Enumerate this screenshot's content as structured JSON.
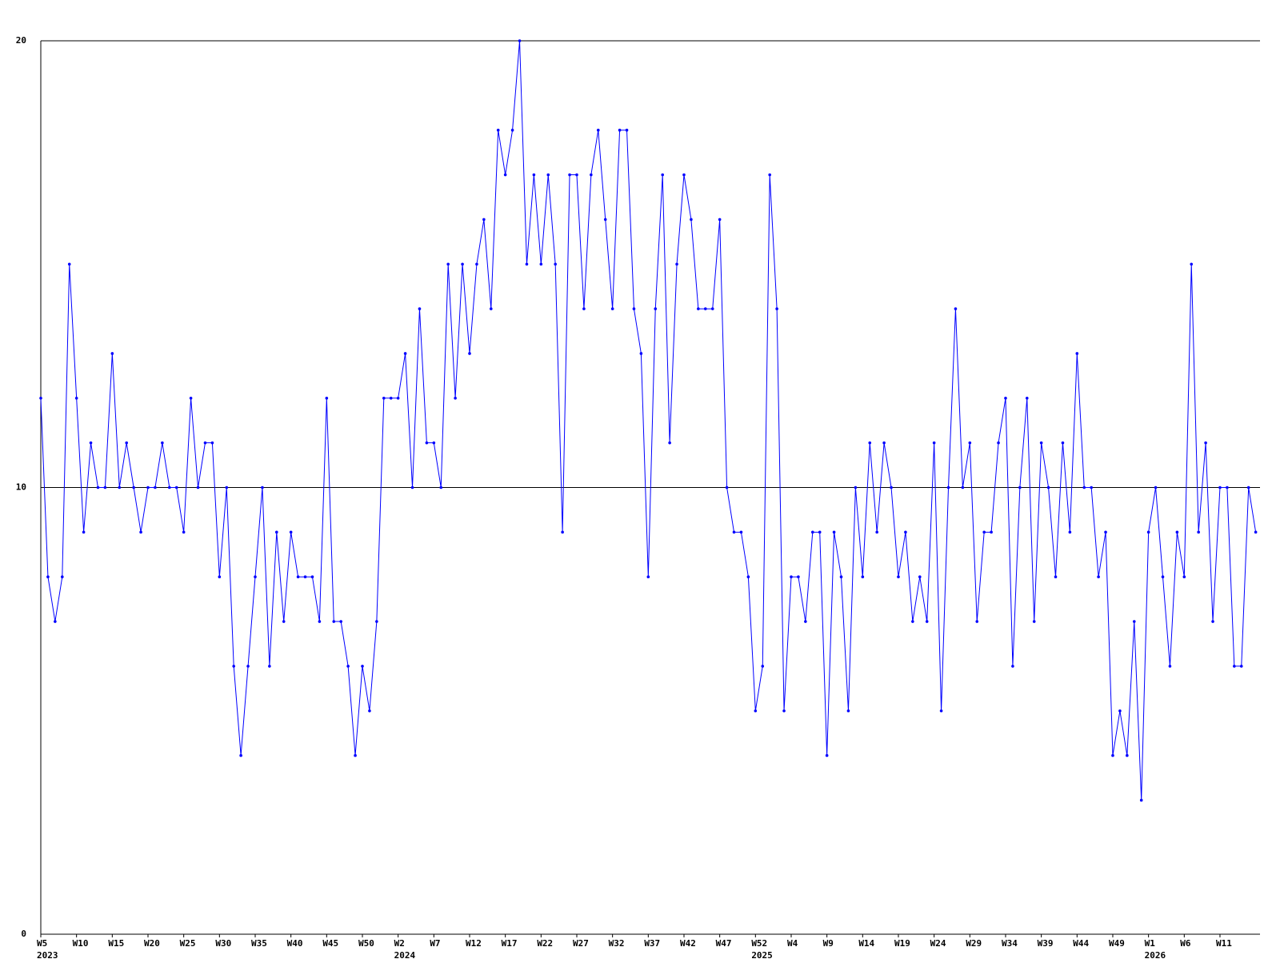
{
  "chart_data": {
    "type": "line",
    "values": [
      12,
      8,
      7,
      8,
      15,
      12,
      9,
      11,
      10,
      10,
      13,
      10,
      11,
      10,
      9,
      10,
      10,
      11,
      10,
      10,
      9,
      12,
      10,
      11,
      11,
      8,
      10,
      6,
      4,
      6,
      8,
      10,
      6,
      9,
      7,
      9,
      8,
      8,
      8,
      7,
      12,
      7,
      7,
      6,
      4,
      6,
      5,
      7,
      12,
      12,
      12,
      13,
      10,
      14,
      11,
      11,
      10,
      15,
      12,
      15,
      13,
      15,
      16,
      14,
      18,
      17,
      18,
      20,
      15,
      17,
      15,
      17,
      15,
      9,
      17,
      17,
      14,
      17,
      18,
      16,
      14,
      18,
      18,
      14,
      13,
      8,
      14,
      17,
      11,
      15,
      17,
      16,
      14,
      14,
      14,
      16,
      10,
      9,
      9,
      8,
      5,
      6,
      17,
      14,
      5,
      8,
      8,
      7,
      9,
      9,
      4,
      9,
      8,
      5,
      10,
      8,
      11,
      9,
      11,
      10,
      8,
      9,
      7,
      8,
      7,
      11,
      5,
      10,
      14,
      10,
      11,
      7,
      9,
      9,
      11,
      12,
      6,
      10,
      12,
      7,
      11,
      10,
      8,
      11,
      9,
      13,
      10,
      10,
      8,
      9,
      4,
      5,
      4,
      7,
      3,
      9,
      10,
      8,
      6,
      9,
      8,
      15,
      9,
      11,
      7,
      10,
      10,
      6,
      6,
      10,
      9
    ],
    "color": "#0000ff",
    "xlim": [
      0,
      170.6
    ],
    "xticks": [
      {
        "value": 0,
        "label": "W5"
      },
      {
        "value": 5,
        "label": "W10"
      },
      {
        "value": 10,
        "label": "W15"
      },
      {
        "value": 15,
        "label": "W20"
      },
      {
        "value": 20,
        "label": "W25"
      },
      {
        "value": 25,
        "label": "W30"
      },
      {
        "value": 30,
        "label": "W35"
      },
      {
        "value": 35,
        "label": "W40"
      },
      {
        "value": 40,
        "label": "W45"
      },
      {
        "value": 45,
        "label": "W50"
      },
      {
        "value": 50,
        "label": "W2"
      },
      {
        "value": 55,
        "label": "W7"
      },
      {
        "value": 60,
        "label": "W12"
      },
      {
        "value": 65,
        "label": "W17"
      },
      {
        "value": 70,
        "label": "W22"
      },
      {
        "value": 75,
        "label": "W27"
      },
      {
        "value": 80,
        "label": "W32"
      },
      {
        "value": 85,
        "label": "W37"
      },
      {
        "value": 90,
        "label": "W42"
      },
      {
        "value": 95,
        "label": "W47"
      },
      {
        "value": 100,
        "label": "W52"
      },
      {
        "value": 105,
        "label": "W4"
      },
      {
        "value": 110,
        "label": "W9"
      },
      {
        "value": 115,
        "label": "W14"
      },
      {
        "value": 120,
        "label": "W19"
      },
      {
        "value": 125,
        "label": "W24"
      },
      {
        "value": 130,
        "label": "W29"
      },
      {
        "value": 135,
        "label": "W34"
      },
      {
        "value": 140,
        "label": "W39"
      },
      {
        "value": 145,
        "label": "W44"
      },
      {
        "value": 150,
        "label": "W49"
      },
      {
        "value": 155,
        "label": "W1"
      },
      {
        "value": 160,
        "label": "W6"
      },
      {
        "value": 165,
        "label": "W11"
      }
    ],
    "year_labels": [
      {
        "value": 0,
        "label": "2023"
      },
      {
        "value": 50,
        "label": "2024"
      },
      {
        "value": 100,
        "label": "2025"
      },
      {
        "value": 155,
        "label": "2026"
      }
    ],
    "ylim": [
      0,
      20
    ],
    "yticks": [
      0,
      10,
      20
    ],
    "grid": true
  }
}
